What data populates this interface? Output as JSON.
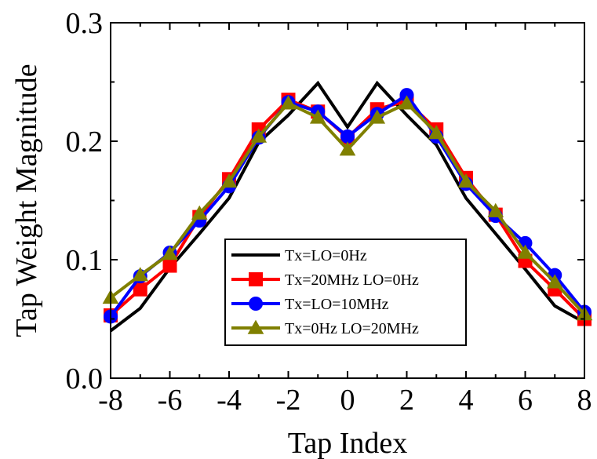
{
  "chart_data": {
    "type": "line",
    "title": "",
    "xlabel": "Tap Index",
    "ylabel": "Tap Weight Magnitude",
    "xlim": [
      -8,
      8
    ],
    "ylim": [
      0.0,
      0.3
    ],
    "x_ticks": [
      "-8",
      "-6",
      "-4",
      "-2",
      "0",
      "2",
      "4",
      "6",
      "8"
    ],
    "x_tick_values": [
      -8,
      -6,
      -4,
      -2,
      0,
      2,
      4,
      6,
      8
    ],
    "y_ticks": [
      "0.0",
      "0.1",
      "0.2",
      "0.3"
    ],
    "y_tick_values": [
      0.0,
      0.1,
      0.2,
      0.3
    ],
    "grid": false,
    "legend_position": "lower-center",
    "x": [
      -8,
      -7,
      -6,
      -5,
      -4,
      -3,
      -2,
      -1,
      0,
      1,
      2,
      3,
      4,
      5,
      6,
      7,
      8
    ],
    "series": [
      {
        "name": "Tx=LO=0Hz",
        "color": "#000000",
        "marker": "none",
        "values": [
          0.04,
          0.059,
          0.093,
          0.122,
          0.152,
          0.199,
          0.222,
          0.249,
          0.212,
          0.249,
          0.222,
          0.197,
          0.152,
          0.122,
          0.092,
          0.061,
          0.047
        ]
      },
      {
        "name": "Tx=20MHz LO=0Hz",
        "color": "#ff0000",
        "marker": "square",
        "values": [
          0.053,
          0.075,
          0.095,
          0.136,
          0.168,
          0.21,
          0.235,
          0.225,
          0.203,
          0.227,
          0.234,
          0.21,
          0.169,
          0.138,
          0.099,
          0.075,
          0.05
        ]
      },
      {
        "name": "Tx=LO=10MHz",
        "color": "#0000ff",
        "marker": "circle",
        "values": [
          0.052,
          0.086,
          0.106,
          0.133,
          0.162,
          0.203,
          0.233,
          0.225,
          0.204,
          0.223,
          0.239,
          0.204,
          0.164,
          0.137,
          0.114,
          0.087,
          0.056
        ]
      },
      {
        "name": "Tx=0Hz LO=20MHz",
        "color": "#808000",
        "marker": "triangle",
        "values": [
          0.068,
          0.087,
          0.105,
          0.139,
          0.166,
          0.204,
          0.232,
          0.22,
          0.193,
          0.22,
          0.232,
          0.207,
          0.166,
          0.141,
          0.106,
          0.081,
          0.054
        ]
      }
    ]
  }
}
